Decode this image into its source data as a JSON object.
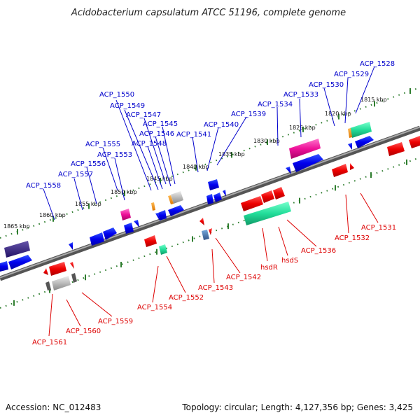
{
  "title": "Acidobacterium capsulatum ATCC 51196, complete genome",
  "footer": {
    "accession": "Accession: NC_012483",
    "summary": "Topology: circular; Length: 4,127,356 bp; Genes: 3,425"
  },
  "colors": {
    "backbone": "#777777",
    "ticks_major": "#2e7d2e",
    "ticks_minor": "#2e7d2e",
    "label_top": "#0000cc",
    "label_bottom": "#dd0000"
  },
  "tick_labels": [
    {
      "text": "1815 kbp"
    },
    {
      "text": "1820 kbp"
    },
    {
      "text": "1825 kbp"
    },
    {
      "text": "1830 kbp"
    },
    {
      "text": "1835 kbp"
    },
    {
      "text": "1840 kbp"
    },
    {
      "text": "1845 kbp"
    },
    {
      "text": "1850 kbp"
    },
    {
      "text": "1855 kbp"
    },
    {
      "text": "1860 kbp"
    },
    {
      "text": "1865 kbp"
    }
  ],
  "top_labels": [
    "ACP_1528",
    "ACP_1529",
    "ACP_1530",
    "ACP_1533",
    "ACP_1534",
    "ACP_1539",
    "ACP_1540",
    "ACP_1541",
    "ACP_1545",
    "ACP_1546",
    "ACP_1547",
    "ACP_1548",
    "ACP_1549",
    "ACP_1550",
    "ACP_1553",
    "ACP_1555",
    "ACP_1556",
    "ACP_1557",
    "ACP_1558"
  ],
  "bottom_labels": [
    "ACP_1531",
    "ACP_1532",
    "ACP_1536",
    "hsdS",
    "hsdR",
    "ACP_1542",
    "ACP_1543",
    "ACP_1552",
    "ACP_1554",
    "ACP_1559",
    "ACP_1560",
    "ACP_1561"
  ]
}
